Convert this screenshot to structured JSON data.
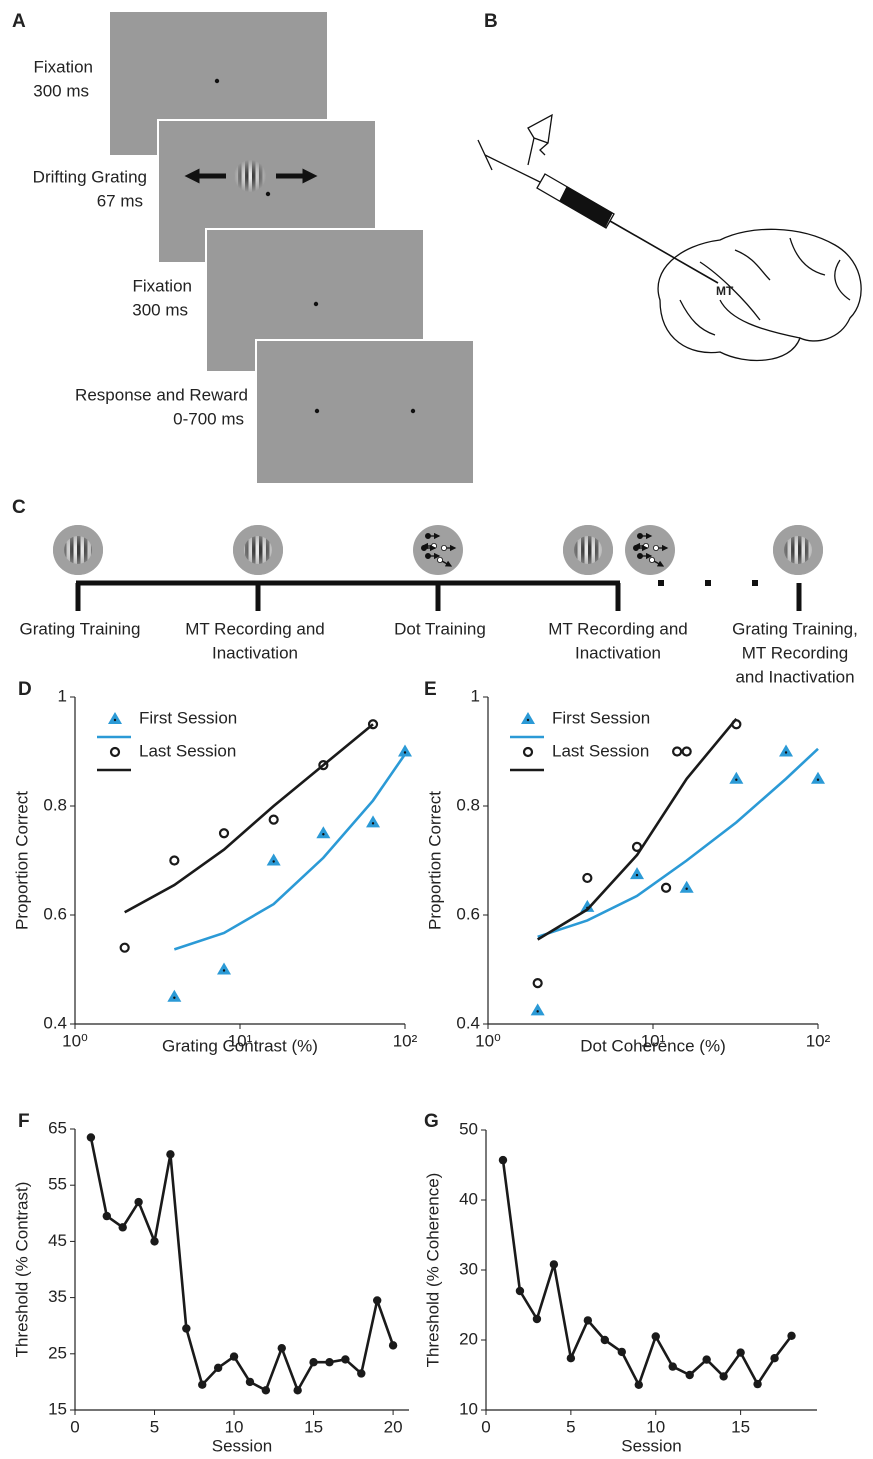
{
  "panel_a": {
    "label": "A",
    "screens": [
      {
        "lines": [
          "Fixation",
          "300 ms"
        ]
      },
      {
        "lines": [
          "Drifting  Grating",
          "67 ms"
        ]
      },
      {
        "lines": [
          "Fixation",
          "300 ms"
        ]
      },
      {
        "lines": [
          "Response  and  Reward",
          "0-700  ms"
        ]
      }
    ]
  },
  "panel_b": {
    "label": "B",
    "area_label": "MT"
  },
  "panel_c": {
    "label": "C",
    "stages": [
      {
        "lines": [
          "Grating Training"
        ]
      },
      {
        "lines": [
          "MT Recording and",
          "Inactivation"
        ]
      },
      {
        "lines": [
          "Dot Training"
        ]
      },
      {
        "lines": [
          "MT Recording and",
          "Inactivation"
        ]
      },
      {
        "lines": [
          "Grating Training,",
          "MT Recording",
          "and Inactivation"
        ]
      }
    ]
  },
  "chart_data": [
    {
      "panel": "D",
      "type": "scatter",
      "xlabel": "Grating Contrast (%)",
      "ylabel": "Proportion Correct",
      "xscale": "log",
      "xlim": [
        1,
        100
      ],
      "ylim": [
        0.4,
        1
      ],
      "xticks": [
        {
          "value": 1,
          "label": "10⁰"
        },
        {
          "value": 10,
          "label": "10¹"
        },
        {
          "value": 100,
          "label": "10²"
        }
      ],
      "yticks": [
        0.4,
        0.6,
        0.8,
        1
      ],
      "legend": "upper left",
      "series": [
        {
          "name": "First Session",
          "color": "#2b9ad6",
          "marker": "triangle",
          "x": [
            4,
            8,
            16,
            32,
            64,
            100
          ],
          "values": [
            0.45,
            0.5,
            0.7,
            0.75,
            0.77,
            0.9
          ],
          "fit_x": [
            4,
            8,
            16,
            32,
            64,
            100
          ],
          "fit_values": [
            0.537,
            0.567,
            0.62,
            0.705,
            0.81,
            0.895
          ]
        },
        {
          "name": "Last Session",
          "color": "#1a1a1a",
          "marker": "circle",
          "x": [
            2,
            4,
            8,
            16,
            32,
            64
          ],
          "values": [
            0.54,
            0.7,
            0.75,
            0.775,
            0.875,
            0.95
          ],
          "fit_x": [
            2,
            4,
            8,
            16,
            32,
            64
          ],
          "fit_values": [
            0.605,
            0.655,
            0.72,
            0.8,
            0.875,
            0.95
          ]
        }
      ]
    },
    {
      "panel": "E",
      "type": "scatter",
      "xlabel": "Dot Coherence (%)",
      "ylabel": "Proportion Correct",
      "xscale": "log",
      "xlim": [
        1,
        100
      ],
      "ylim": [
        0.4,
        1
      ],
      "xticks": [
        {
          "value": 1,
          "label": "10⁰"
        },
        {
          "value": 10,
          "label": "10¹"
        },
        {
          "value": 100,
          "label": "10²"
        }
      ],
      "yticks": [
        0.4,
        0.6,
        0.8,
        1
      ],
      "legend": "upper left",
      "series": [
        {
          "name": "First Session",
          "color": "#2b9ad6",
          "marker": "triangle",
          "x": [
            2,
            4,
            8,
            16,
            32,
            64,
            100
          ],
          "values": [
            0.425,
            0.615,
            0.675,
            0.65,
            0.85,
            0.9,
            0.85
          ],
          "fit_x": [
            2,
            4,
            8,
            16,
            32,
            64,
            100
          ],
          "fit_values": [
            0.56,
            0.59,
            0.635,
            0.7,
            0.77,
            0.85,
            0.905
          ]
        },
        {
          "name": "Last Session",
          "color": "#1a1a1a",
          "marker": "circle",
          "x": [
            2,
            4,
            8,
            12,
            14,
            16,
            32
          ],
          "values": [
            0.475,
            0.668,
            0.725,
            0.65,
            0.9,
            0.9,
            0.95
          ],
          "fit_x": [
            2,
            4,
            8,
            16,
            32
          ],
          "fit_values": [
            0.555,
            0.61,
            0.71,
            0.85,
            0.96
          ]
        }
      ]
    },
    {
      "panel": "F",
      "type": "line",
      "xlabel": "Session",
      "ylabel": "Threshold (% Contrast)",
      "xlim": [
        0,
        21
      ],
      "ylim": [
        15,
        65
      ],
      "xticks": [
        0,
        5,
        10,
        15,
        20
      ],
      "yticks": [
        15,
        25,
        35,
        45,
        55,
        65
      ],
      "series": [
        {
          "color": "#1a1a1a",
          "x": [
            1,
            2,
            3,
            4,
            5,
            6,
            7,
            8,
            9,
            10,
            11,
            12,
            13,
            14,
            15,
            16,
            17,
            18,
            19,
            20
          ],
          "values": [
            63.5,
            49.5,
            47.5,
            52,
            45,
            60.5,
            29.5,
            19.5,
            22.5,
            24.5,
            20,
            18.5,
            26,
            18.5,
            23.5,
            23.5,
            24,
            21.5,
            34.5,
            26.5
          ]
        }
      ]
    },
    {
      "panel": "G",
      "type": "line",
      "xlabel": "Session",
      "ylabel": "Threshold (% Coherence)",
      "xlim": [
        0,
        19.5
      ],
      "ylim": [
        10,
        50
      ],
      "xticks": [
        0,
        5,
        10,
        15
      ],
      "yticks": [
        10,
        20,
        30,
        40,
        50
      ],
      "series": [
        {
          "color": "#1a1a1a",
          "x": [
            1,
            2,
            3,
            4,
            5,
            6,
            7,
            8,
            9,
            10,
            11,
            12,
            13,
            14,
            15,
            16,
            17,
            18
          ],
          "values": [
            45.7,
            27,
            23,
            30.8,
            17.4,
            22.8,
            20,
            18.3,
            13.6,
            20.5,
            16.2,
            15,
            17.2,
            14.8,
            18.2,
            13.7,
            17.4,
            20.6
          ]
        }
      ]
    }
  ]
}
